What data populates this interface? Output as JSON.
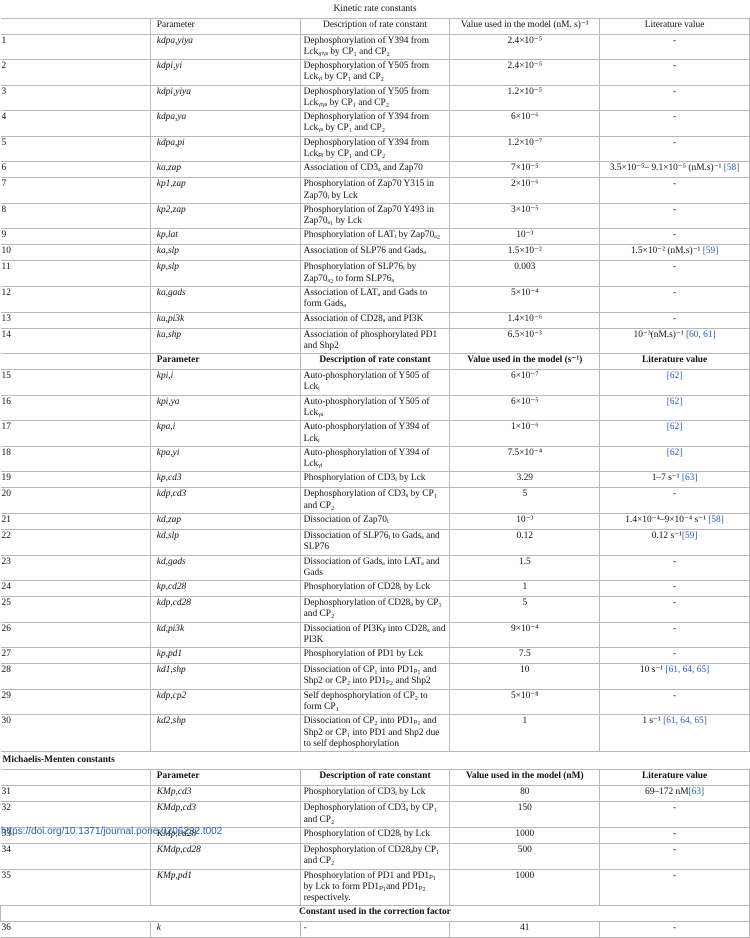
{
  "table_title": "Kinetic rate constants",
  "header_1": {
    "param": "Parameter",
    "desc": "Description of rate constant",
    "value": "Value used in the model (nM. s)⁻¹",
    "lit": "Literature value"
  },
  "rows_1": [
    {
      "n": "1",
      "param": "kₐ dpa,yiya",
      "desc": "Dephosphorylation of Y394 from Lck₈ᵢᵧₐ by CP₁ and CP₂",
      "value": "2.4×10⁻⁵",
      "lit": "-"
    },
    {
      "n": "2",
      "param": "kdpi,yi",
      "desc": "Dephosphorylation of Y505 from Lckᵧᵢ by CP₁ and CP₂",
      "value": "2.4×10⁻⁵",
      "lit": "-"
    },
    {
      "n": "3",
      "param": "kdpi,yiya",
      "desc": "Dephosphorylation of Y505 from Lckᵧᵢᵧₐ by CP₁ and CP₂",
      "value": "1.2×10⁻⁵",
      "lit": "-"
    },
    {
      "n": "4",
      "param": "kdpa,ya",
      "desc": "Dephosphorylation of Y394 from Lckᵧₐ by CP₁ and CP₂",
      "value": "6×10⁻⁶",
      "lit": "-"
    },
    {
      "n": "5",
      "param": "kdpa,pi",
      "desc": "Dephosphorylation of Y394 from Lckₚᵢ by CP₁ and CP₂",
      "value": "1.2×10⁻⁷",
      "lit": "-"
    },
    {
      "n": "6",
      "param": "ka,zap",
      "desc": "Association of CD3ₐ and Zap70",
      "value": "7×10⁻⁵",
      "lit": "3.5×10⁻⁵– 9.1×10⁻⁵ (nM.s)⁻¹ [58]"
    },
    {
      "n": "7",
      "param": "kp1,zap",
      "desc": "Phosphorylation of Zap70 Y315 in Zap70ᵢ by Lck",
      "value": "2×10⁻⁶",
      "lit": "-"
    },
    {
      "n": "8",
      "param": "kp2,zap",
      "desc": "Phosphorylation of Zap70 Y493 in Zap70ₐ₁ by Lck",
      "value": "3×10⁻⁵",
      "lit": "-"
    },
    {
      "n": "9",
      "param": "kp,lat",
      "desc": "Phosphorylation of LATᵢ by Zap70ₐ₂",
      "value": "10⁻³",
      "lit": "-"
    },
    {
      "n": "10",
      "param": "ka,slp",
      "desc": "Association of SLP76 and Gadsₐ",
      "value": "1.5×10⁻²",
      "lit": "1.5×10⁻² (nM.s)⁻¹ [59]"
    },
    {
      "n": "11",
      "param": "kp,slp",
      "desc": "Phosphorylation of SLP76ᵢ by Zap70ₐ₂ to form SLP76ₐ",
      "value": "0.003",
      "lit": "-"
    },
    {
      "n": "12",
      "param": "ka,gads",
      "desc": "Association of LATₐ and Gads to form Gadsₐ",
      "value": "5×10⁻⁴",
      "lit": "-"
    },
    {
      "n": "13",
      "param": "ka,pi3k",
      "desc": "Association of CD28ₐ and PI3K",
      "value": "1.4×10⁻⁶",
      "lit": "-"
    },
    {
      "n": "14",
      "param": "ka,shp",
      "desc": "Association of phosphorylated PD1 and Shp2",
      "value": "6.5×10⁻³",
      "lit": "10⁻³(nM.s)⁻¹ [60, 61]"
    }
  ],
  "header_2": {
    "param": "Parameter",
    "desc": "Description of rate constant",
    "value": "Value used in the model (s⁻¹)",
    "lit": "Literature value"
  },
  "rows_2": [
    {
      "n": "15",
      "param": "kpi,i",
      "desc": "Auto-phosphorylation of Y505 of Lckᵢ",
      "value": "6×10⁻⁷",
      "lit": "[62]"
    },
    {
      "n": "16",
      "param": "kpi,ya",
      "desc": "Auto-phosphorylation of Y505 of Lckᵧₐ",
      "value": "6×10⁻⁵",
      "lit": "[62]"
    },
    {
      "n": "17",
      "param": "kpa,i",
      "desc": "Auto-phosphorylation of Y394 of Lckᵢ",
      "value": "1×10⁻⁶",
      "lit": "[62]"
    },
    {
      "n": "18",
      "param": "kpa,yi",
      "desc": "Auto-phosphorylation of Y394 of Lckᵧᵢ",
      "value": "7.5×10⁻⁴",
      "lit": "[62]"
    },
    {
      "n": "19",
      "param": "kp,cd3",
      "desc": "Phosphorylation of CD3ᵢ by Lck",
      "value": "3.29",
      "lit": "1–7 s⁻¹ [63]"
    },
    {
      "n": "20",
      "param": "kdp,cd3",
      "desc": "Dephosphorylation of CD3ₐ by CP₁ and CP₂",
      "value": "5",
      "lit": "-"
    },
    {
      "n": "21",
      "param": "kd,zap",
      "desc": "Dissociation of Zap70ᵢ",
      "value": "10⁻³",
      "lit": "1.4×10⁻⁴–9×10⁻⁴ s⁻¹ [58]"
    },
    {
      "n": "22",
      "param": "kd,slp",
      "desc": "Dissociation of SLP76ᵢ to Gadsₐ and SLP76",
      "value": "0.12",
      "lit": "0.12 s⁻¹[59]"
    },
    {
      "n": "23",
      "param": "kd,gads",
      "desc": "Dissociation of Gadsₐ into LATₐ and Gads",
      "value": "1.5",
      "lit": "-"
    },
    {
      "n": "24",
      "param": "kp,cd28",
      "desc": "Phosphorylation of CD28ᵢ by Lck",
      "value": "1",
      "lit": "-"
    },
    {
      "n": "25",
      "param": "kdp,cd28",
      "desc": "Dephosphorylation of CD28ₐ by CP₁ and CP₂",
      "value": "5",
      "lit": "-"
    },
    {
      "n": "26",
      "param": "kd,pi3k",
      "desc": "Dissociation of PI3Kᵦ into CD28ₐ and PI3K",
      "value": "9×10⁻⁴",
      "lit": "-"
    },
    {
      "n": "27",
      "param": "kp,pd1",
      "desc": "Phosphorylation of PD1 by Lck",
      "value": "7.5",
      "lit": "-"
    },
    {
      "n": "28",
      "param": "kd1,shp",
      "desc": "Dissociation of CP₁ into PD1ₚ₁ and Shp2 or CP₂ into PD1ₚ₂ and Shp2",
      "value": "10",
      "lit": "10 s⁻¹ [61, 64, 65]"
    },
    {
      "n": "29",
      "param": "kdp,cp2",
      "desc": "Self dephosphorylation of CP₂ to form CP₁",
      "value": "5×10⁻⁸",
      "lit": "-"
    },
    {
      "n": "30",
      "param": "kd2,shp",
      "desc": "Dissociation of CP₂ into PD1ₚ₁ and Shp2 or CP₁ into PD1 and Shp2 due to self dephosphorylation",
      "value": "1",
      "lit": "1 s⁻¹ [61, 64, 65]"
    }
  ],
  "section_mm": "Michaelis-Menten constants",
  "header_3": {
    "param": "Parameter",
    "desc": "Description of rate constant",
    "value": "Value used in the model (nM)",
    "lit": "Literature value"
  },
  "rows_3": [
    {
      "n": "31",
      "param": "KMp,cd3",
      "desc": "Phosphorylation of CD3ᵢ by Lck",
      "value": "80",
      "lit": "69–172 nM[63]"
    },
    {
      "n": "32",
      "param": "KMdp,cd3",
      "desc": "Dephosphorylation of CD3ₐ by CP₁ and CP₂",
      "value": "150",
      "lit": "-"
    },
    {
      "n": "33",
      "param": "KMp,cd28",
      "desc": "Phosphorylation of CD28ᵢ by Lck",
      "value": "1000",
      "lit": "-"
    },
    {
      "n": "34",
      "param": "KMdp,cd28",
      "desc": "Dephosphorylation of CD28ₐby CP₁ and CP₂",
      "value": "500",
      "lit": "-"
    },
    {
      "n": "35",
      "param": "KMp,pd1",
      "desc": "Phosphorylation of PD1 and PD1ₚ₁ by Lck to form PD1ₚ₁and PD1ₚ₂ respectively.",
      "value": "1000",
      "lit": "-"
    }
  ],
  "section_corr": "Constant used in the correction factor",
  "rows_4": [
    {
      "n": "36",
      "param": "k",
      "desc": "-",
      "value": "41",
      "lit": "-"
    }
  ],
  "doi": "https://doi.org/10.1371/journal.pone.0206232.t002",
  "colors": {
    "link": "#2a5db0",
    "border": "#b8b8b8"
  }
}
